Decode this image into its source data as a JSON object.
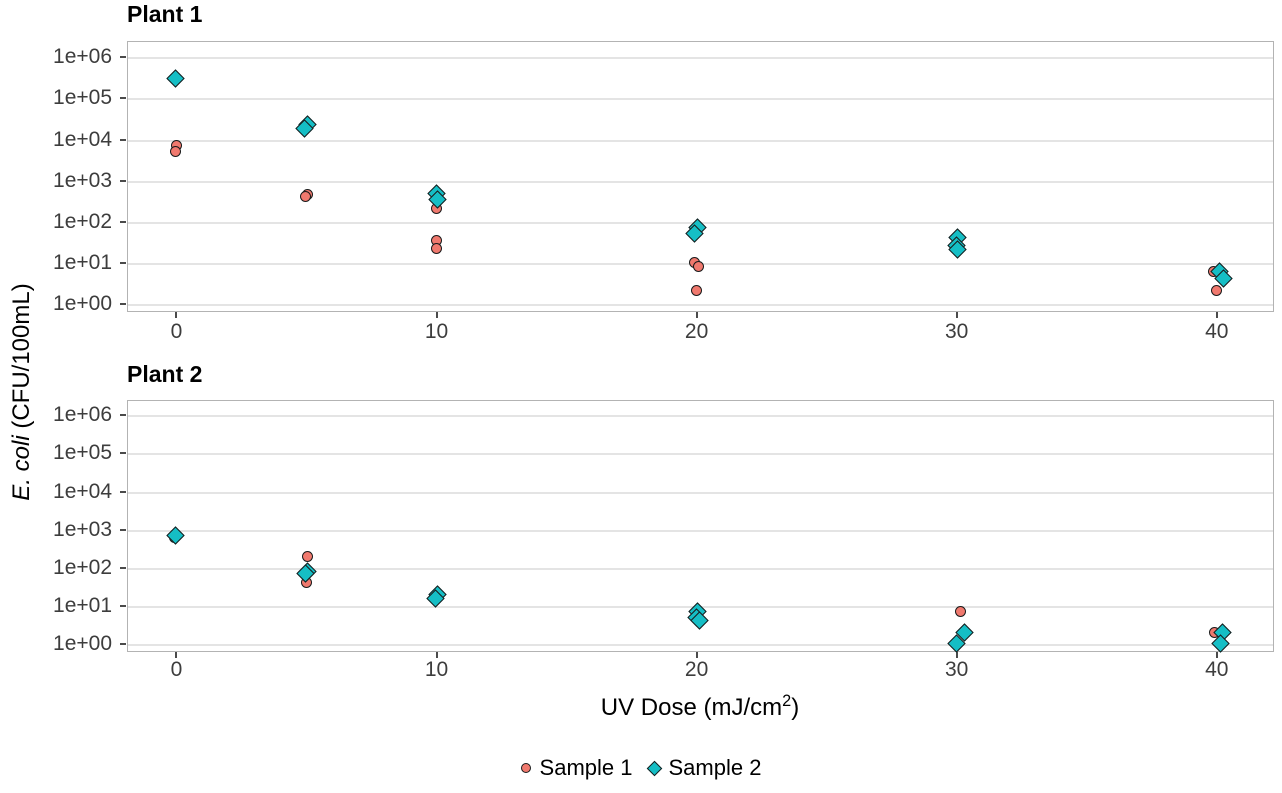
{
  "chart_data": {
    "type": "scatter",
    "y_scale": "log10",
    "grid": "horizontal-major-only",
    "legend_position": "bottom",
    "xlabel_prefix": "UV Dose (mJ/cm",
    "xlabel_sup": "2",
    "xlabel_suffix": ")",
    "ylabel_italic": "E. coli",
    "ylabel_rest": " (CFU/100mL)",
    "x_range": [
      -1.9,
      42.2
    ],
    "ylog_range": [
      6.4,
      -0.2
    ],
    "x_ticks": [
      {
        "value": 0,
        "label": "0"
      },
      {
        "value": 10,
        "label": "10"
      },
      {
        "value": 20,
        "label": "20"
      },
      {
        "value": 30,
        "label": "30"
      },
      {
        "value": 40,
        "label": "40"
      }
    ],
    "y_ticks": [
      {
        "log": 0,
        "label": "1e+00"
      },
      {
        "log": 1,
        "label": "1e+01"
      },
      {
        "log": 2,
        "label": "1e+02"
      },
      {
        "log": 3,
        "label": "1e+03"
      },
      {
        "log": 4,
        "label": "1e+04"
      },
      {
        "log": 5,
        "label": "1e+05"
      },
      {
        "log": 6,
        "label": "1e+06"
      }
    ],
    "legend": [
      {
        "label": "Sample 1",
        "marker": "circle",
        "color": "#F0796E"
      },
      {
        "label": "Sample 2",
        "marker": "diamond",
        "color": "#15BEC5"
      }
    ],
    "colors": {
      "sample1": "#F0796E",
      "sample2": "#15BEC5",
      "marker_outline": "#1a1a1a",
      "grid": "#e4e4e4",
      "panel_border": "#b3b3b3",
      "tick_text": "#3d3d3d",
      "tick_mark": "#4a4a4a"
    },
    "facets": [
      {
        "label": "Plant 1",
        "series": [
          {
            "name": "Sample 1",
            "marker": "circle",
            "points": [
              {
                "x": 0,
                "y": 7000,
                "jx": 1
              },
              {
                "x": 0,
                "y": 5000,
                "jx": 0
              },
              {
                "x": 5,
                "y": 450,
                "jx": 2
              },
              {
                "x": 5,
                "y": 400,
                "jx": 0
              },
              {
                "x": 10,
                "y": 200,
                "jx": 0
              },
              {
                "x": 10,
                "y": 33,
                "jx": 0
              },
              {
                "x": 10,
                "y": 21,
                "jx": 0
              },
              {
                "x": 20,
                "y": 10,
                "jx": -2
              },
              {
                "x": 20,
                "y": 8,
                "jx": 2
              },
              {
                "x": 20,
                "y": 2,
                "jx": 0
              },
              {
                "x": 40,
                "y": 6,
                "jx": -3
              },
              {
                "x": 40,
                "y": 2,
                "jx": 0
              }
            ]
          },
          {
            "name": "Sample 2",
            "marker": "diamond",
            "points": [
              {
                "x": 0,
                "y": 300000,
                "jx": 0
              },
              {
                "x": 5,
                "y": 22000,
                "jx": 2
              },
              {
                "x": 5,
                "y": 18000,
                "jx": -1
              },
              {
                "x": 10,
                "y": 480,
                "jx": 0
              },
              {
                "x": 10,
                "y": 330,
                "jx": 1
              },
              {
                "x": 20,
                "y": 70,
                "jx": 1
              },
              {
                "x": 20,
                "y": 50,
                "jx": -2
              },
              {
                "x": 30,
                "y": 40,
                "jx": 1
              },
              {
                "x": 30,
                "y": 25,
                "jx": 0
              },
              {
                "x": 30,
                "y": 20,
                "jx": 1
              },
              {
                "x": 40,
                "y": 6,
                "jx": 3
              },
              {
                "x": 40,
                "y": 4,
                "jx": 7
              }
            ]
          }
        ]
      },
      {
        "label": "Plant 2",
        "series": [
          {
            "name": "Sample 1",
            "marker": "circle",
            "points": [
              {
                "x": 0,
                "y": 600,
                "jx": -1
              },
              {
                "x": 5,
                "y": 200,
                "jx": 2
              },
              {
                "x": 5,
                "y": 40,
                "jx": 1
              },
              {
                "x": 30,
                "y": 7,
                "jx": 4
              },
              {
                "x": 40,
                "y": 2,
                "jx": -2
              }
            ]
          },
          {
            "name": "Sample 2",
            "marker": "diamond",
            "points": [
              {
                "x": 0,
                "y": 700,
                "jx": 0
              },
              {
                "x": 5,
                "y": 80,
                "jx": 2
              },
              {
                "x": 5,
                "y": 70,
                "jx": 0
              },
              {
                "x": 10,
                "y": 20,
                "jx": 1
              },
              {
                "x": 10,
                "y": 15,
                "jx": -1
              },
              {
                "x": 20,
                "y": 7,
                "jx": 1
              },
              {
                "x": 20,
                "y": 5,
                "jx": 0
              },
              {
                "x": 20,
                "y": 4,
                "jx": 3
              },
              {
                "x": 30,
                "y": 2,
                "jx": 8
              },
              {
                "x": 30,
                "y": 1,
                "jx": 0
              },
              {
                "x": 40,
                "y": 2,
                "jx": 6
              },
              {
                "x": 40,
                "y": 1,
                "jx": 4
              }
            ]
          }
        ]
      }
    ]
  }
}
